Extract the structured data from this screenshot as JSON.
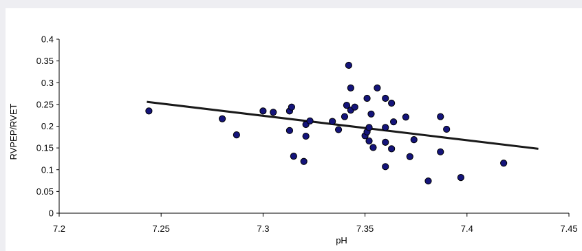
{
  "chart_data": {
    "type": "scatter",
    "xlabel": "pH",
    "ylabel": "RVPEP/RVET",
    "xlim": [
      7.2,
      7.45
    ],
    "ylim": [
      0,
      0.4
    ],
    "x_ticks": [
      "7.2",
      "7.25",
      "7.3",
      "7.35",
      "7.4",
      "7.45"
    ],
    "y_ticks": [
      "0",
      "0.05",
      "0.1",
      "0.15",
      "0.2",
      "0.25",
      "0.3",
      "0.35",
      "0.4"
    ],
    "grid": false,
    "legend": "none",
    "colors": {
      "marker_fill": "#14147a",
      "marker_stroke": "#000000",
      "trendline": "#1a1a1a",
      "axis": "#000000"
    },
    "trendline": {
      "type": "linear",
      "from": [
        7.243,
        0.256
      ],
      "to": [
        7.435,
        0.148
      ]
    },
    "series": [
      {
        "x": [
          7.244,
          7.28,
          7.287,
          7.3,
          7.305,
          7.313,
          7.314,
          7.313,
          7.315,
          7.32,
          7.321,
          7.321,
          7.323,
          7.334,
          7.337,
          7.34,
          7.341,
          7.342,
          7.343,
          7.343,
          7.345,
          7.35,
          7.351,
          7.351,
          7.352,
          7.352,
          7.353,
          7.354,
          7.356,
          7.36,
          7.36,
          7.36,
          7.36,
          7.363,
          7.363,
          7.364,
          7.37,
          7.372,
          7.374,
          7.381,
          7.387,
          7.387,
          7.39,
          7.397,
          7.418
        ],
        "y": [
          0.235,
          0.217,
          0.18,
          0.235,
          0.232,
          0.235,
          0.244,
          0.19,
          0.131,
          0.119,
          0.204,
          0.177,
          0.212,
          0.211,
          0.192,
          0.222,
          0.248,
          0.34,
          0.288,
          0.237,
          0.244,
          0.178,
          0.264,
          0.187,
          0.197,
          0.166,
          0.228,
          0.151,
          0.288,
          0.264,
          0.197,
          0.163,
          0.107,
          0.253,
          0.148,
          0.21,
          0.221,
          0.13,
          0.169,
          0.074,
          0.222,
          0.141,
          0.193,
          0.082,
          0.115
        ]
      }
    ]
  }
}
